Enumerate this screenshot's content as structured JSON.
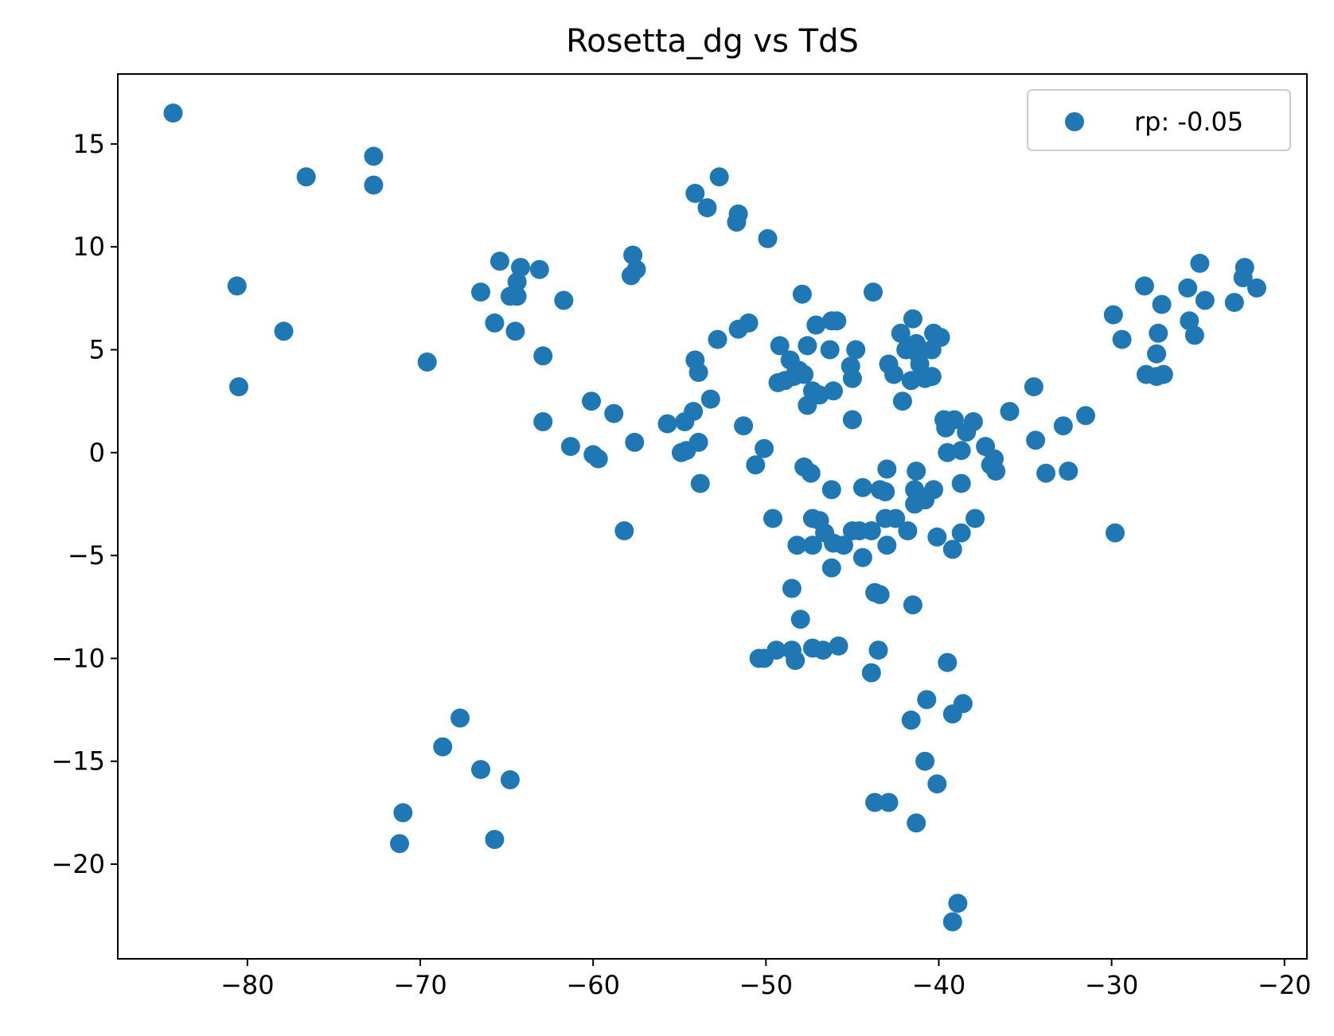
{
  "chart_data": {
    "type": "scatter",
    "title": "Rosetta_dg vs TdS",
    "xlabel": "",
    "ylabel": "",
    "xlim": [
      -87.5,
      -18.7
    ],
    "ylim": [
      -24.6,
      18.4
    ],
    "xticks": [
      -80,
      -70,
      -60,
      -50,
      -40,
      -30,
      -20
    ],
    "yticks": [
      15,
      10,
      5,
      0,
      -5,
      -10,
      -15,
      -20
    ],
    "xtick_labels": [
      "−80",
      "−70",
      "−60",
      "−50",
      "−40",
      "−30",
      "−20"
    ],
    "ytick_labels": [
      "15",
      "10",
      "5",
      "0",
      "−5",
      "−10",
      "−15",
      "−20"
    ],
    "grid": false,
    "legend_position": "top-right",
    "color": "#1f77b4",
    "series": [
      {
        "name": "rp: -0.05",
        "points": [
          [
            -84.3,
            16.5
          ],
          [
            -76.6,
            13.4
          ],
          [
            -72.7,
            14.4
          ],
          [
            -72.7,
            13.0
          ],
          [
            -80.6,
            8.1
          ],
          [
            -77.9,
            5.9
          ],
          [
            -80.5,
            3.2
          ],
          [
            -69.6,
            4.4
          ],
          [
            -65.4,
            9.3
          ],
          [
            -64.2,
            9.0
          ],
          [
            -63.1,
            8.9
          ],
          [
            -64.4,
            8.3
          ],
          [
            -66.5,
            7.8
          ],
          [
            -64.8,
            7.6
          ],
          [
            -64.4,
            7.6
          ],
          [
            -61.7,
            7.4
          ],
          [
            -65.7,
            6.3
          ],
          [
            -64.5,
            5.9
          ],
          [
            -62.9,
            4.7
          ],
          [
            -57.7,
            9.6
          ],
          [
            -57.5,
            8.9
          ],
          [
            -57.8,
            8.6
          ],
          [
            -54.1,
            12.6
          ],
          [
            -52.7,
            13.4
          ],
          [
            -53.4,
            11.9
          ],
          [
            -51.6,
            11.6
          ],
          [
            -51.7,
            11.2
          ],
          [
            -49.9,
            10.4
          ],
          [
            -60.1,
            2.5
          ],
          [
            -58.8,
            1.9
          ],
          [
            -62.9,
            1.5
          ],
          [
            -61.3,
            0.3
          ],
          [
            -60.0,
            -0.1
          ],
          [
            -59.7,
            -0.3
          ],
          [
            -57.6,
            0.5
          ],
          [
            -58.2,
            -3.8
          ],
          [
            -55.7,
            1.4
          ],
          [
            -54.7,
            1.5
          ],
          [
            -54.2,
            2.0
          ],
          [
            -53.2,
            2.6
          ],
          [
            -54.9,
            0.0
          ],
          [
            -54.6,
            0.1
          ],
          [
            -53.9,
            0.5
          ],
          [
            -53.8,
            -1.5
          ],
          [
            -54.1,
            4.5
          ],
          [
            -53.9,
            3.9
          ],
          [
            -52.8,
            5.5
          ],
          [
            -51.6,
            6.0
          ],
          [
            -51.0,
            6.3
          ],
          [
            -51.3,
            1.3
          ],
          [
            -50.1,
            0.2
          ],
          [
            -50.6,
            -0.6
          ],
          [
            -49.6,
            -3.2
          ],
          [
            -47.9,
            7.7
          ],
          [
            -47.1,
            6.2
          ],
          [
            -45.9,
            6.4
          ],
          [
            -46.2,
            6.4
          ],
          [
            -43.8,
            7.8
          ],
          [
            -49.2,
            5.2
          ],
          [
            -47.6,
            5.2
          ],
          [
            -46.3,
            5.0
          ],
          [
            -44.8,
            5.0
          ],
          [
            -48.6,
            4.5
          ],
          [
            -48.1,
            4.0
          ],
          [
            -47.8,
            3.8
          ],
          [
            -49.3,
            3.4
          ],
          [
            -48.9,
            3.5
          ],
          [
            -48.4,
            3.7
          ],
          [
            -47.3,
            3.0
          ],
          [
            -46.9,
            2.8
          ],
          [
            -46.1,
            3.0
          ],
          [
            -47.6,
            2.3
          ],
          [
            -45.1,
            4.2
          ],
          [
            -45.0,
            3.6
          ],
          [
            -45.0,
            1.6
          ],
          [
            -41.5,
            6.5
          ],
          [
            -42.2,
            5.8
          ],
          [
            -41.3,
            5.3
          ],
          [
            -40.3,
            5.8
          ],
          [
            -39.9,
            5.6
          ],
          [
            -42.9,
            4.3
          ],
          [
            -42.6,
            3.8
          ],
          [
            -41.9,
            5.0
          ],
          [
            -41.2,
            4.8
          ],
          [
            -41.1,
            4.3
          ],
          [
            -40.4,
            5.0
          ],
          [
            -41.6,
            3.5
          ],
          [
            -40.8,
            3.6
          ],
          [
            -40.4,
            3.7
          ],
          [
            -42.1,
            2.5
          ],
          [
            -47.8,
            -0.7
          ],
          [
            -47.4,
            -1.0
          ],
          [
            -46.2,
            -1.8
          ],
          [
            -44.4,
            -1.7
          ],
          [
            -43.4,
            -1.8
          ],
          [
            -43.0,
            -0.8
          ],
          [
            -43.1,
            -1.9
          ],
          [
            -41.3,
            -0.9
          ],
          [
            -41.4,
            -1.8
          ],
          [
            -41.4,
            -2.5
          ],
          [
            -40.8,
            -2.3
          ],
          [
            -40.3,
            -1.8
          ],
          [
            -47.3,
            -3.2
          ],
          [
            -46.9,
            -3.3
          ],
          [
            -46.6,
            -3.9
          ],
          [
            -46.1,
            -4.4
          ],
          [
            -45.5,
            -4.5
          ],
          [
            -45.0,
            -3.8
          ],
          [
            -44.6,
            -3.8
          ],
          [
            -43.9,
            -3.8
          ],
          [
            -43.1,
            -3.2
          ],
          [
            -42.5,
            -3.2
          ],
          [
            -41.8,
            -3.8
          ],
          [
            -43.0,
            -4.5
          ],
          [
            -44.4,
            -5.1
          ],
          [
            -46.2,
            -5.6
          ],
          [
            -48.2,
            -4.5
          ],
          [
            -47.3,
            -4.5
          ],
          [
            -40.1,
            -4.1
          ],
          [
            -38.7,
            -3.9
          ],
          [
            -37.9,
            -3.2
          ],
          [
            -39.2,
            -4.7
          ],
          [
            -38.7,
            -1.5
          ],
          [
            -39.7,
            1.6
          ],
          [
            -39.1,
            1.6
          ],
          [
            -38.0,
            1.5
          ],
          [
            -39.6,
            1.2
          ],
          [
            -38.4,
            1.0
          ],
          [
            -39.5,
            0.0
          ],
          [
            -38.7,
            0.1
          ],
          [
            -37.3,
            0.3
          ],
          [
            -36.8,
            -0.3
          ],
          [
            -37.0,
            -0.6
          ],
          [
            -36.7,
            -0.9
          ],
          [
            -35.9,
            2.0
          ],
          [
            -34.5,
            3.2
          ],
          [
            -34.4,
            0.6
          ],
          [
            -33.8,
            -1.0
          ],
          [
            -32.8,
            1.3
          ],
          [
            -31.5,
            1.8
          ],
          [
            -32.5,
            -0.9
          ],
          [
            -29.8,
            -3.9
          ],
          [
            -29.9,
            6.7
          ],
          [
            -29.4,
            5.5
          ],
          [
            -28.1,
            8.1
          ],
          [
            -28.0,
            3.8
          ],
          [
            -27.4,
            4.8
          ],
          [
            -27.3,
            5.8
          ],
          [
            -27.1,
            7.2
          ],
          [
            -27.4,
            3.7
          ],
          [
            -27.0,
            3.8
          ],
          [
            -25.6,
            8.0
          ],
          [
            -25.5,
            6.4
          ],
          [
            -25.2,
            5.7
          ],
          [
            -24.9,
            9.2
          ],
          [
            -24.6,
            7.4
          ],
          [
            -22.3,
            9.0
          ],
          [
            -22.4,
            8.5
          ],
          [
            -21.6,
            8.0
          ],
          [
            -22.9,
            7.3
          ],
          [
            -48.5,
            -6.6
          ],
          [
            -48.0,
            -8.1
          ],
          [
            -43.7,
            -6.8
          ],
          [
            -43.4,
            -6.9
          ],
          [
            -41.5,
            -7.4
          ],
          [
            -50.4,
            -10.0
          ],
          [
            -50.1,
            -10.0
          ],
          [
            -49.4,
            -9.6
          ],
          [
            -48.5,
            -9.6
          ],
          [
            -48.3,
            -10.1
          ],
          [
            -47.3,
            -9.5
          ],
          [
            -46.7,
            -9.6
          ],
          [
            -45.8,
            -9.4
          ],
          [
            -43.5,
            -9.6
          ],
          [
            -43.9,
            -10.7
          ],
          [
            -39.5,
            -10.2
          ],
          [
            -40.7,
            -12.0
          ],
          [
            -39.2,
            -12.7
          ],
          [
            -38.6,
            -12.2
          ],
          [
            -41.6,
            -13.0
          ],
          [
            -40.8,
            -15.0
          ],
          [
            -40.1,
            -16.1
          ],
          [
            -43.7,
            -17.0
          ],
          [
            -42.9,
            -17.0
          ],
          [
            -41.3,
            -18.0
          ],
          [
            -38.9,
            -21.9
          ],
          [
            -39.2,
            -22.8
          ],
          [
            -67.7,
            -12.9
          ],
          [
            -68.7,
            -14.3
          ],
          [
            -66.5,
            -15.4
          ],
          [
            -64.8,
            -15.9
          ],
          [
            -71.0,
            -17.5
          ],
          [
            -71.2,
            -19.0
          ],
          [
            -65.7,
            -18.8
          ]
        ]
      }
    ]
  }
}
